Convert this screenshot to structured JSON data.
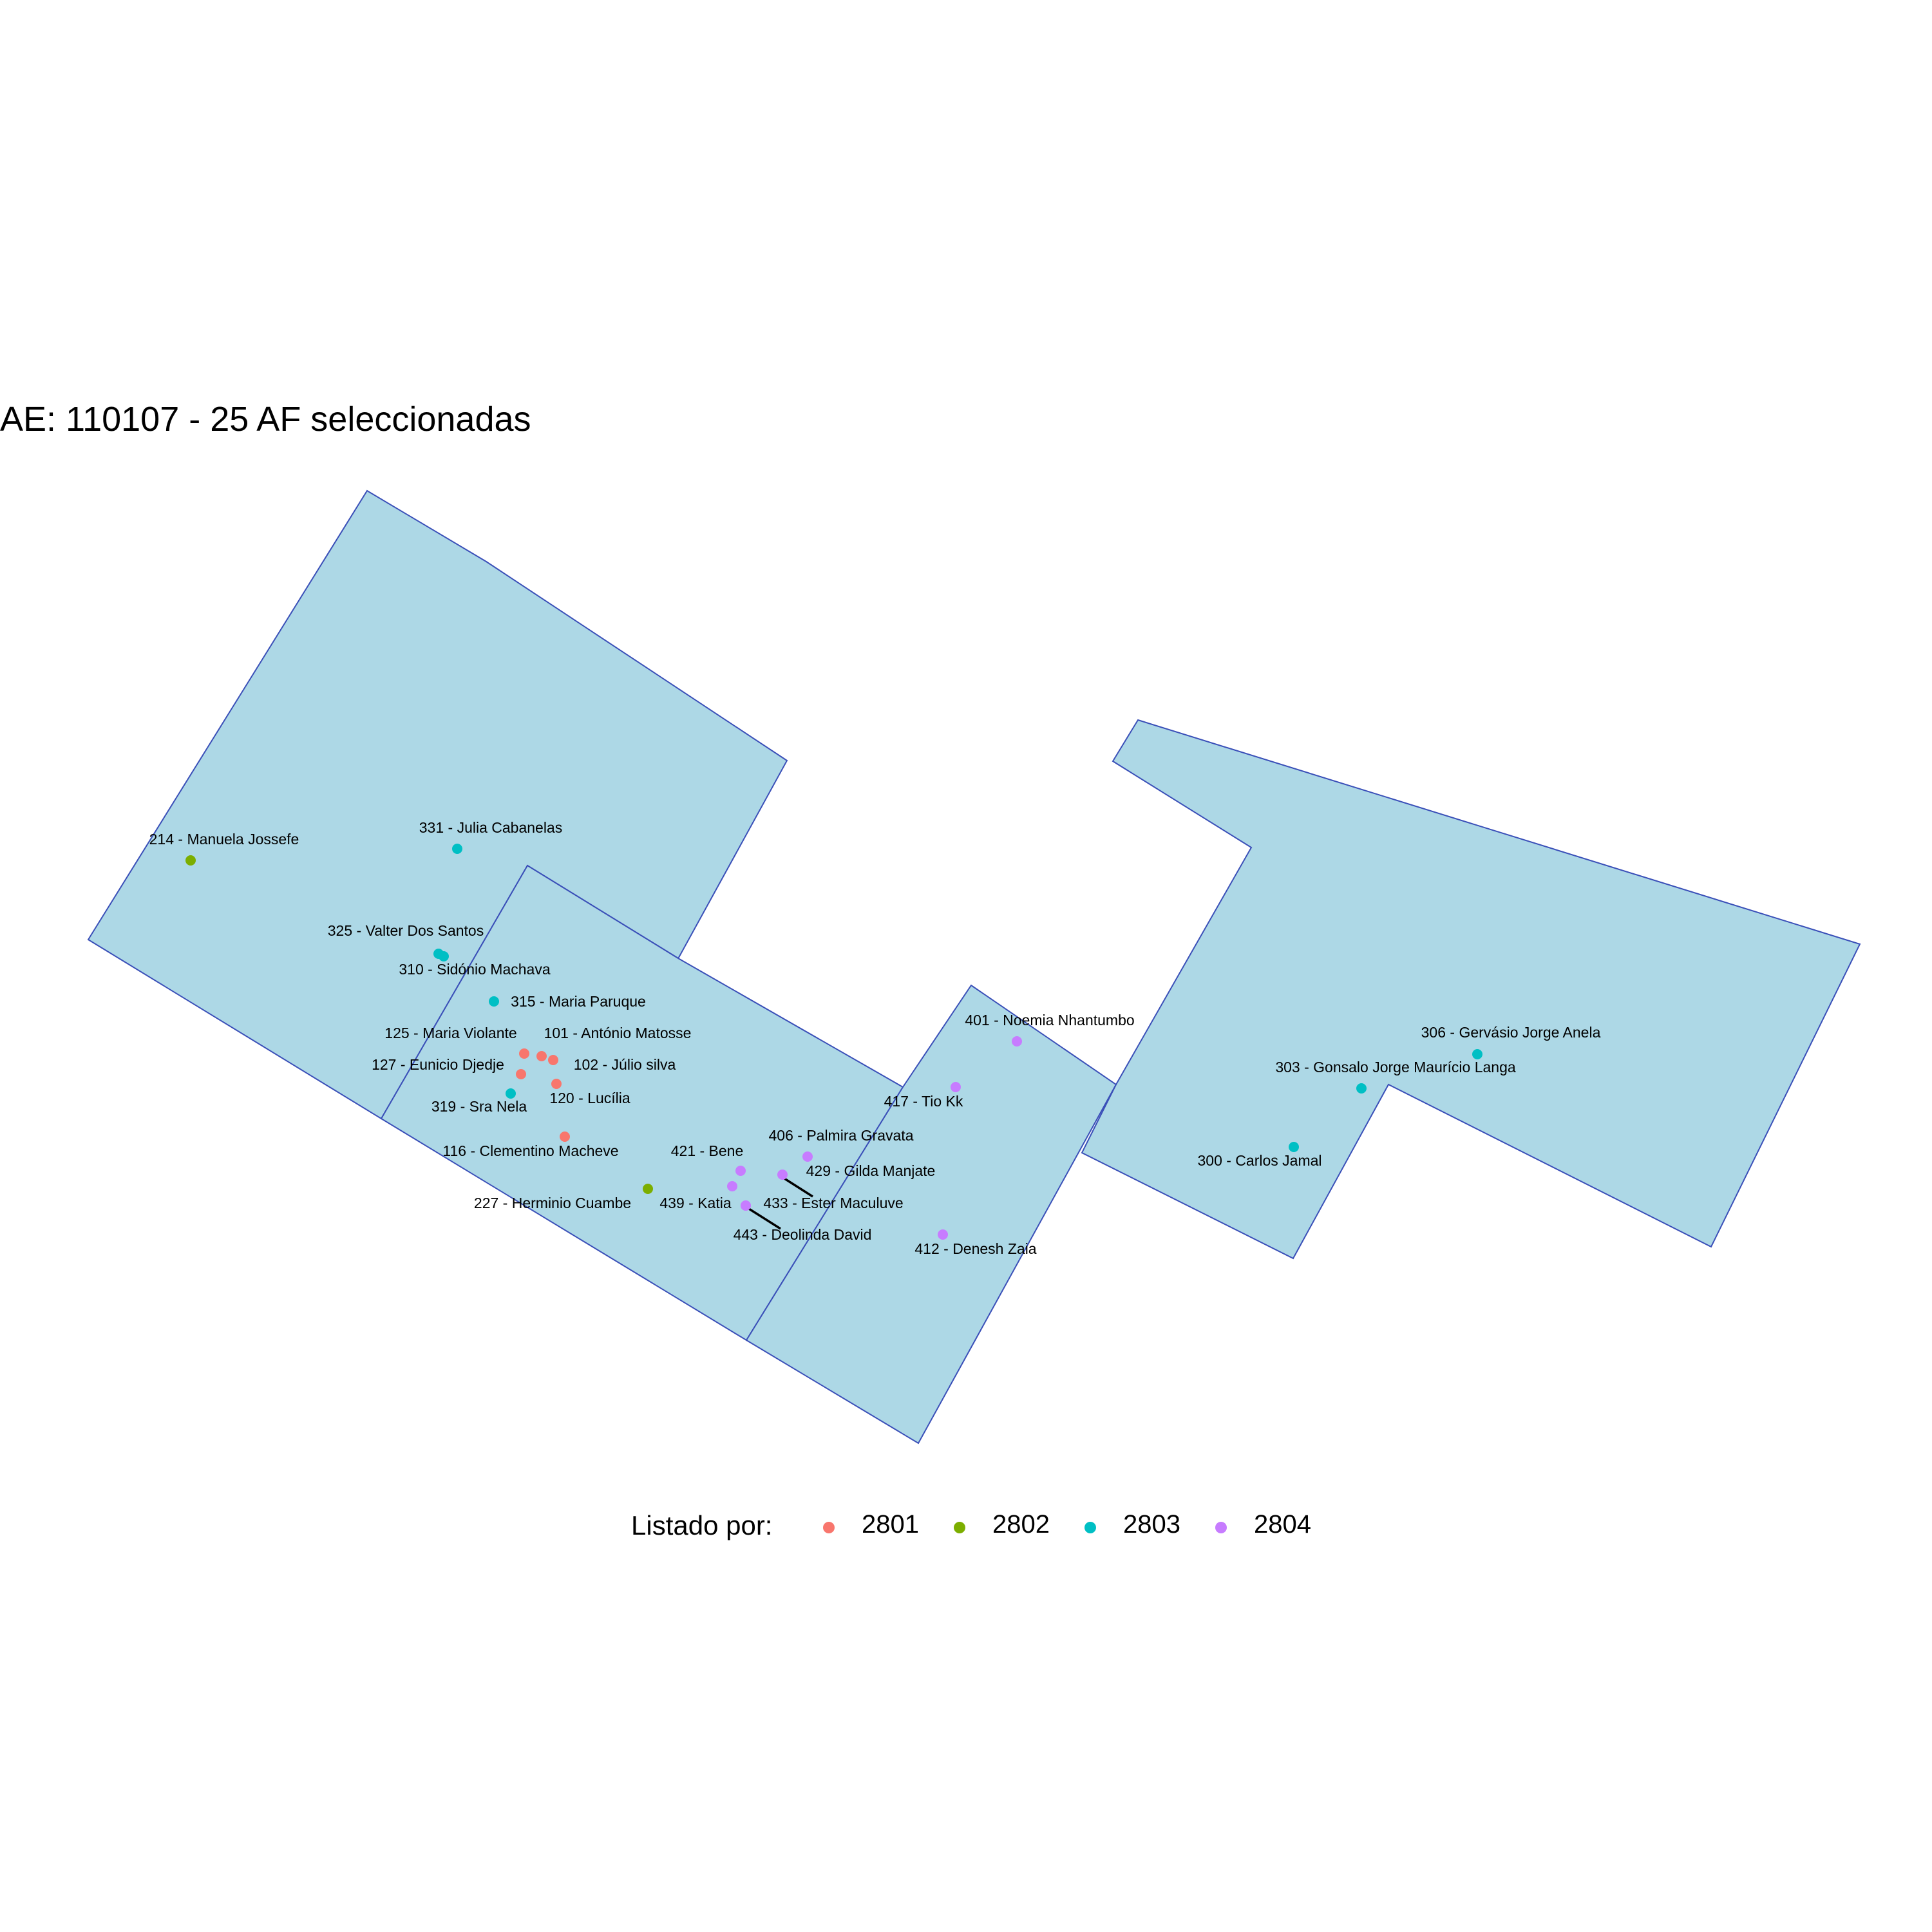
{
  "title": "AE: 110107 - 25  AF seleccionadas",
  "colors": {
    "area_fill": "#ADD8E6",
    "area_stroke": "#3A4FB8",
    "background": "#FFFFFF"
  },
  "legend": {
    "title": "Listado por:",
    "items": [
      {
        "label": "2801",
        "color": "#F8766D"
      },
      {
        "label": "2802",
        "color": "#7CAE00"
      },
      {
        "label": "2803",
        "color": "#00BFC4"
      },
      {
        "label": "2804",
        "color": "#C77CFF"
      }
    ]
  },
  "households": [
    {
      "label": "214 - Manuela Jossefe",
      "group": "2802"
    },
    {
      "label": "331 - Julia Cabanelas",
      "group": "2803"
    },
    {
      "label": "325 - Valter Dos Santos",
      "group": "2803"
    },
    {
      "label": "310 - Sidónio Machava",
      "group": "2803"
    },
    {
      "label": "315 - Maria Paruque",
      "group": "2803"
    },
    {
      "label": "125 - Maria Violante",
      "group": "2801"
    },
    {
      "label": "101 - António Matosse",
      "group": "2801"
    },
    {
      "label": "127 - Eunicio Djedje",
      "group": "2801"
    },
    {
      "label": "102 - Júlio silva",
      "group": "2801"
    },
    {
      "label": "120 - Lucília",
      "group": "2801"
    },
    {
      "label": "319 - Sra Nela",
      "group": "2803"
    },
    {
      "label": "116 - Clementino Macheve",
      "group": "2801"
    },
    {
      "label": "227 - Herminio  Cuambe",
      "group": "2802"
    },
    {
      "label": "421 - Bene",
      "group": "2804"
    },
    {
      "label": "406 - Palmira Gravata",
      "group": "2804"
    },
    {
      "label": "429 - Gilda Manjate",
      "group": "2804"
    },
    {
      "label": "439 - Katia",
      "group": "2804"
    },
    {
      "label": "433 - Ester Maculuve",
      "group": "2804"
    },
    {
      "label": "443 - Deolinda David",
      "group": "2804"
    },
    {
      "label": "412 - Denesh Zaia",
      "group": "2804"
    },
    {
      "label": "401 - Noemia Nhantumbo",
      "group": "2804"
    },
    {
      "label": "417 - Tio Kk",
      "group": "2804"
    },
    {
      "label": "306 - Gervásio Jorge Anela",
      "group": "2803"
    },
    {
      "label": "303 - Gonsalo Jorge Maurício  Langa",
      "group": "2803"
    },
    {
      "label": "300 - Carlos Jamal",
      "group": "2803"
    }
  ]
}
